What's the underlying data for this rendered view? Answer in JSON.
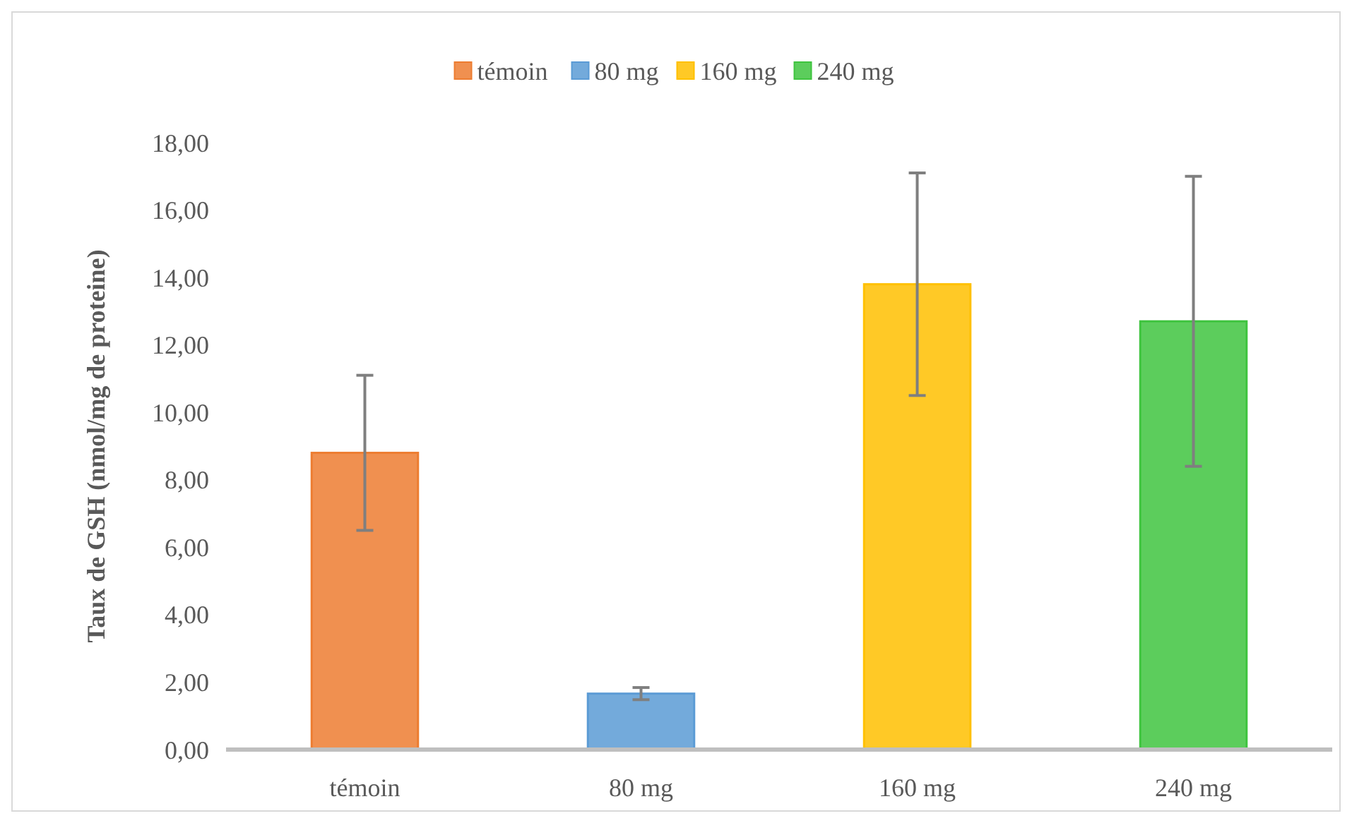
{
  "chart_data": {
    "type": "bar",
    "ylabel": "Taux de GSH (nmol/mg de proteine)",
    "categories": [
      "témoin",
      "80 mg",
      "160 mg",
      "240 mg"
    ],
    "series": [
      {
        "name": "témoin",
        "color": "#ed7d31",
        "values": [
          8.8,
          null,
          null,
          null
        ],
        "errors": [
          2.3,
          null,
          null,
          null
        ]
      },
      {
        "name": "80 mg",
        "color": "#5b9bd5",
        "values": [
          null,
          1.66,
          null,
          null
        ],
        "errors": [
          null,
          0.18,
          null,
          null
        ]
      },
      {
        "name": "160 mg",
        "color": "#ffc000",
        "values": [
          null,
          null,
          13.8,
          null
        ],
        "errors": [
          null,
          null,
          3.3,
          null
        ]
      },
      {
        "name": "240 mg",
        "color": "#3fc43f",
        "values": [
          null,
          null,
          null,
          12.7
        ],
        "errors": [
          null,
          null,
          null,
          4.3
        ]
      }
    ],
    "ylim": [
      0,
      18
    ],
    "yticks": [
      {
        "value": 0,
        "label": "0,00"
      },
      {
        "value": 2,
        "label": "2,00"
      },
      {
        "value": 4,
        "label": "4,00"
      },
      {
        "value": 6,
        "label": "6,00"
      },
      {
        "value": 8,
        "label": "8,00"
      },
      {
        "value": 10,
        "label": "10,00"
      },
      {
        "value": 12,
        "label": "12,00"
      },
      {
        "value": 14,
        "label": "14,00"
      },
      {
        "value": 16,
        "label": "16,00"
      },
      {
        "value": 18,
        "label": "18,00"
      }
    ],
    "legend": "top",
    "grid": false
  }
}
